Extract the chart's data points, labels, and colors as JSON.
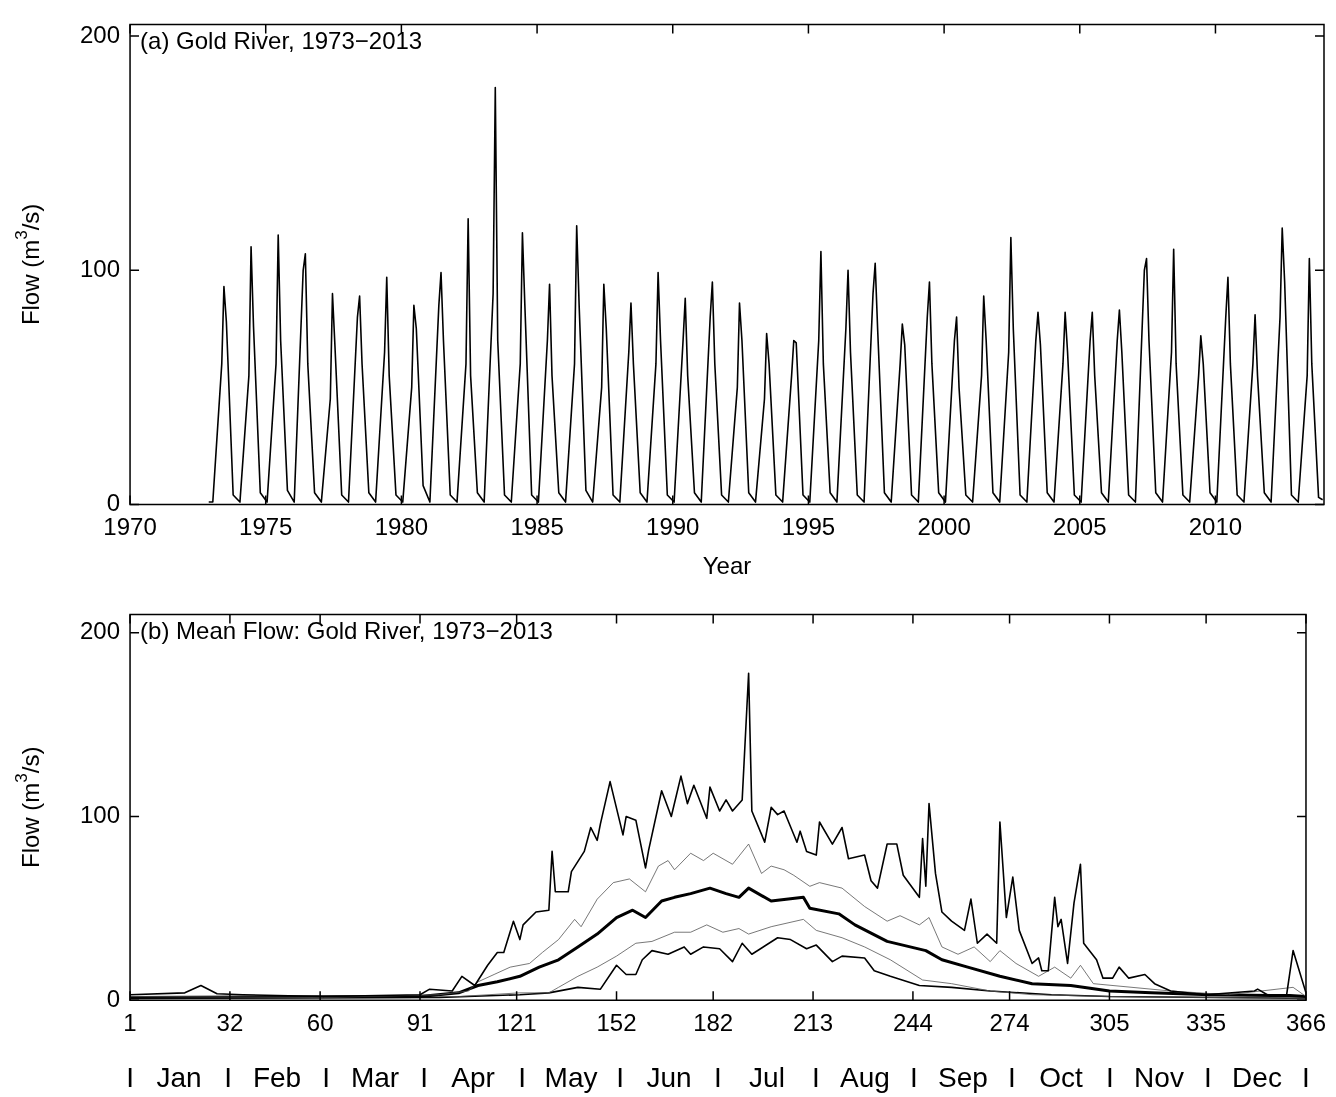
{
  "chart_data": [
    {
      "type": "line",
      "title": "(a) Gold River, 1973−2013",
      "xlabel": "Year",
      "ylabel": "Flow (m$^{3}$/s)",
      "xlim": [
        1970,
        2014
      ],
      "xticks": [
        1970,
        1975,
        1980,
        1985,
        1990,
        1995,
        2000,
        2005,
        2010
      ],
      "ylim": [
        0,
        205
      ],
      "yticks": [
        0,
        100,
        200
      ],
      "legend": false,
      "series": [
        {
          "color": "#000000",
          "x": [
            1972.9,
            1973.05,
            1973.38,
            1973.46,
            1973.55,
            1973.8,
            1974.05,
            1974.38,
            1974.46,
            1974.55,
            1974.8,
            1975.05,
            1975.38,
            1975.46,
            1975.55,
            1975.8,
            1976.05,
            1976.38,
            1976.46,
            1976.55,
            1976.8,
            1977.05,
            1977.38,
            1977.46,
            1977.55,
            1977.8,
            1978.05,
            1978.38,
            1978.46,
            1978.55,
            1978.8,
            1979.05,
            1979.38,
            1979.46,
            1979.55,
            1979.8,
            1980.05,
            1980.38,
            1980.46,
            1980.55,
            1980.8,
            1981.05,
            1981.38,
            1981.46,
            1981.55,
            1981.8,
            1982.05,
            1982.38,
            1982.46,
            1982.55,
            1982.8,
            1983.05,
            1983.38,
            1983.46,
            1983.55,
            1983.8,
            1984.05,
            1984.38,
            1984.46,
            1984.55,
            1984.8,
            1985.05,
            1985.38,
            1985.46,
            1985.55,
            1985.8,
            1986.05,
            1986.38,
            1986.46,
            1986.55,
            1986.8,
            1987.05,
            1987.38,
            1987.46,
            1987.55,
            1987.8,
            1988.05,
            1988.38,
            1988.46,
            1988.55,
            1988.8,
            1989.05,
            1989.38,
            1989.46,
            1989.55,
            1989.8,
            1990.05,
            1990.38,
            1990.46,
            1990.55,
            1990.8,
            1991.05,
            1991.38,
            1991.46,
            1991.55,
            1991.8,
            1992.05,
            1992.38,
            1992.46,
            1992.55,
            1992.8,
            1993.05,
            1993.38,
            1993.46,
            1993.55,
            1993.8,
            1994.05,
            1994.38,
            1994.46,
            1994.55,
            1994.8,
            1995.05,
            1995.38,
            1995.46,
            1995.55,
            1995.8,
            1996.05,
            1996.38,
            1996.46,
            1996.55,
            1996.8,
            1997.05,
            1997.38,
            1997.46,
            1997.55,
            1997.8,
            1998.05,
            1998.38,
            1998.46,
            1998.55,
            1998.8,
            1999.05,
            1999.38,
            1999.46,
            1999.55,
            1999.8,
            2000.05,
            2000.38,
            2000.46,
            2000.55,
            2000.8,
            2001.05,
            2001.38,
            2001.46,
            2001.55,
            2001.8,
            2002.05,
            2002.38,
            2002.46,
            2002.55,
            2002.8,
            2003.05,
            2003.38,
            2003.46,
            2003.55,
            2003.8,
            2004.05,
            2004.38,
            2004.46,
            2004.55,
            2004.8,
            2005.05,
            2005.38,
            2005.46,
            2005.55,
            2005.8,
            2006.05,
            2006.38,
            2006.46,
            2006.55,
            2006.8,
            2007.05,
            2007.38,
            2007.46,
            2007.55,
            2007.8,
            2008.05,
            2008.38,
            2008.46,
            2008.55,
            2008.8,
            2009.05,
            2009.38,
            2009.46,
            2009.55,
            2009.8,
            2010.05,
            2010.38,
            2010.46,
            2010.55,
            2010.8,
            2011.05,
            2011.38,
            2011.46,
            2011.55,
            2011.8,
            2012.05,
            2012.38,
            2012.46,
            2012.55,
            2012.8,
            2013.05,
            2013.38,
            2013.46,
            2013.55,
            2013.8,
            2013.95
          ],
          "values": [
            1,
            1,
            60,
            93,
            78,
            4,
            1,
            55,
            110,
            76,
            5,
            1,
            60,
            115,
            70,
            6,
            1,
            100,
            107,
            60,
            5,
            1,
            45,
            90,
            68,
            4,
            1,
            80,
            89,
            60,
            5,
            1,
            65,
            97,
            55,
            4,
            1,
            50,
            85,
            75,
            8,
            1,
            85,
            99,
            70,
            4,
            1,
            60,
            122,
            55,
            5,
            1,
            90,
            178,
            70,
            4,
            1,
            60,
            116,
            85,
            4,
            1,
            70,
            94,
            55,
            5,
            1,
            60,
            119,
            85,
            6,
            1,
            50,
            94,
            75,
            4,
            1,
            65,
            86,
            60,
            5,
            1,
            60,
            99,
            70,
            4,
            1,
            70,
            88,
            55,
            5,
            1,
            80,
            95,
            60,
            4,
            1,
            50,
            86,
            70,
            5,
            1,
            45,
            73,
            60,
            4,
            1,
            55,
            70,
            69,
            4,
            1,
            70,
            108,
            60,
            5,
            1,
            75,
            100,
            65,
            4,
            1,
            90,
            103,
            75,
            5,
            1,
            60,
            77,
            68,
            4,
            1,
            80,
            95,
            60,
            5,
            1,
            70,
            80,
            50,
            4,
            1,
            55,
            89,
            70,
            5,
            1,
            65,
            114,
            75,
            4,
            1,
            70,
            82,
            68,
            5,
            1,
            60,
            82,
            65,
            4,
            1,
            70,
            82,
            55,
            5,
            1,
            70,
            83,
            65,
            4,
            1,
            100,
            105,
            70,
            5,
            1,
            65,
            109,
            60,
            4,
            1,
            55,
            72,
            60,
            5,
            1,
            80,
            97,
            60,
            4,
            1,
            60,
            81,
            55,
            5,
            1,
            80,
            118,
            95,
            4,
            1,
            55,
            105,
            60,
            3,
            2
          ]
        }
      ]
    },
    {
      "type": "line",
      "title": "(b) Mean Flow: Gold River, 1973−2013",
      "ylabel": "Flow (m$^{3}$/s)",
      "xlim": [
        1,
        366
      ],
      "xticks": [
        1,
        32,
        60,
        91,
        121,
        152,
        182,
        213,
        244,
        274,
        305,
        335,
        366
      ],
      "ylim": [
        0,
        210
      ],
      "yticks": [
        0,
        100,
        200
      ],
      "legend": false,
      "annotations": [
        "I",
        "Jan",
        "I",
        "Feb",
        "I",
        "Mar",
        "I",
        "Apr",
        "I",
        "May",
        "I",
        "Jun",
        "I",
        "Jul",
        "I",
        "Aug",
        "I",
        "Sep",
        "I",
        "Oct",
        "I",
        "Nov",
        "I",
        "Dec",
        "I"
      ],
      "series": [
        {
          "color": "#000000",
          "x": [
            1,
            18,
            23,
            28,
            36,
            61,
            91,
            94,
            101,
            104,
            108,
            112,
            115,
            117,
            120,
            122,
            123,
            127,
            131,
            132,
            133,
            137,
            138,
            142,
            144,
            146,
            147,
            150,
            154,
            155,
            158,
            161,
            162,
            166,
            169,
            172,
            174,
            176,
            180,
            181,
            184,
            186,
            188,
            191,
            193,
            194,
            198,
            200,
            202,
            204,
            208,
            209,
            211,
            214,
            215,
            219,
            222,
            224,
            229,
            231,
            233,
            236,
            239,
            241,
            246,
            247,
            248,
            249,
            251,
            253,
            256,
            260,
            262,
            264,
            267,
            270,
            271,
            273,
            275,
            277,
            281,
            283,
            284,
            286,
            288,
            289,
            290,
            292,
            294,
            296,
            297,
            301,
            303,
            306,
            308,
            311,
            316,
            319,
            324,
            335,
            350,
            351,
            354,
            360,
            362,
            366
          ],
          "values": [
            3,
            4,
            8,
            3.5,
            3,
            2,
            3,
            6,
            5,
            13,
            8,
            19,
            26,
            26,
            43,
            33,
            41,
            48,
            49,
            81,
            59,
            59,
            70,
            81,
            94,
            87,
            96,
            119,
            90,
            100,
            98,
            72,
            82,
            114,
            100,
            122,
            107,
            117,
            99,
            116,
            103,
            109,
            103,
            109,
            178,
            103,
            86,
            105,
            101,
            103,
            86,
            92,
            81,
            79,
            97,
            85,
            94,
            77,
            79,
            65,
            61,
            85,
            85,
            68,
            56,
            88,
            62,
            107,
            69,
            48,
            43,
            38,
            55,
            31,
            36,
            31,
            97,
            45,
            67,
            38,
            20,
            23,
            16,
            16,
            56,
            40,
            44,
            20,
            53,
            74,
            31,
            22,
            12,
            12,
            18,
            12,
            14,
            9,
            5,
            3,
            5,
            6,
            3,
            3,
            27,
            4
          ]
        },
        {
          "color": "#555555",
          "x": [
            1,
            61,
            97,
            106,
            109,
            114,
            119,
            125,
            129,
            134,
            139,
            141,
            146,
            151,
            156,
            161,
            165,
            168,
            170,
            175,
            179,
            182,
            188,
            193,
            197,
            200,
            204,
            207,
            212,
            215,
            222,
            229,
            236,
            240,
            246,
            249,
            253,
            258,
            263,
            268,
            271,
            276,
            283,
            288,
            293,
            296,
            300,
            312,
            324,
            342,
            362,
            366
          ],
          "values": [
            2,
            1.5,
            3,
            5,
            10,
            14,
            18,
            20,
            26,
            33,
            44,
            40,
            55,
            64,
            66,
            59,
            73,
            76,
            71,
            80,
            76,
            80,
            74,
            85,
            69,
            73,
            71,
            68,
            62,
            64,
            61,
            51,
            43,
            46,
            41,
            45,
            29,
            25,
            29,
            21,
            27,
            20,
            13,
            18,
            12,
            19,
            9,
            7,
            5,
            3,
            7,
            2
          ]
        },
        {
          "color": "#000000",
          "x": [
            1,
            91,
            103,
            109,
            115,
            122,
            128,
            134,
            140,
            146,
            152,
            157,
            161,
            166,
            170,
            175,
            181,
            186,
            190,
            193,
            200,
            210,
            212,
            221,
            226,
            236,
            248,
            253,
            261,
            271,
            281,
            293,
            305,
            318,
            336,
            361,
            366
          ],
          "values": [
            1.5,
            2,
            4,
            8,
            10,
            13,
            18,
            22,
            29,
            36,
            45,
            49,
            45,
            54,
            56,
            58,
            61,
            58,
            56,
            61,
            54,
            56,
            50,
            47,
            41,
            32,
            27,
            22,
            18,
            13,
            9,
            8,
            5,
            4,
            3,
            2.5,
            2
          ]
        },
        {
          "color": "#555555",
          "x": [
            1,
            103,
            122,
            131,
            134,
            140,
            146,
            152,
            158,
            163,
            170,
            175,
            180,
            185,
            190,
            193,
            200,
            210,
            214,
            222,
            229,
            237,
            247,
            256,
            268,
            281,
            305,
            366
          ],
          "values": [
            1,
            2,
            4,
            4,
            7,
            13,
            18,
            24,
            31,
            32,
            37,
            37,
            41,
            37,
            39,
            36,
            40,
            44,
            38,
            34,
            29,
            22,
            11,
            9,
            5,
            3,
            2,
            1
          ]
        },
        {
          "color": "#000000",
          "x": [
            1,
            97,
            122,
            131,
            140,
            147,
            152,
            155,
            158,
            160,
            163,
            168,
            173,
            175,
            179,
            184,
            188,
            191,
            194,
            202,
            206,
            211,
            214,
            219,
            222,
            229,
            232,
            237,
            246,
            256,
            268,
            287,
            305,
            366
          ],
          "values": [
            1,
            1.5,
            3,
            4,
            7,
            6,
            19,
            14,
            14,
            22,
            27,
            25,
            29,
            25,
            29,
            28,
            21,
            31,
            25,
            34,
            33,
            28,
            30,
            21,
            24,
            23,
            16,
            13,
            8,
            7,
            5,
            3,
            2,
            1
          ]
        }
      ]
    }
  ]
}
